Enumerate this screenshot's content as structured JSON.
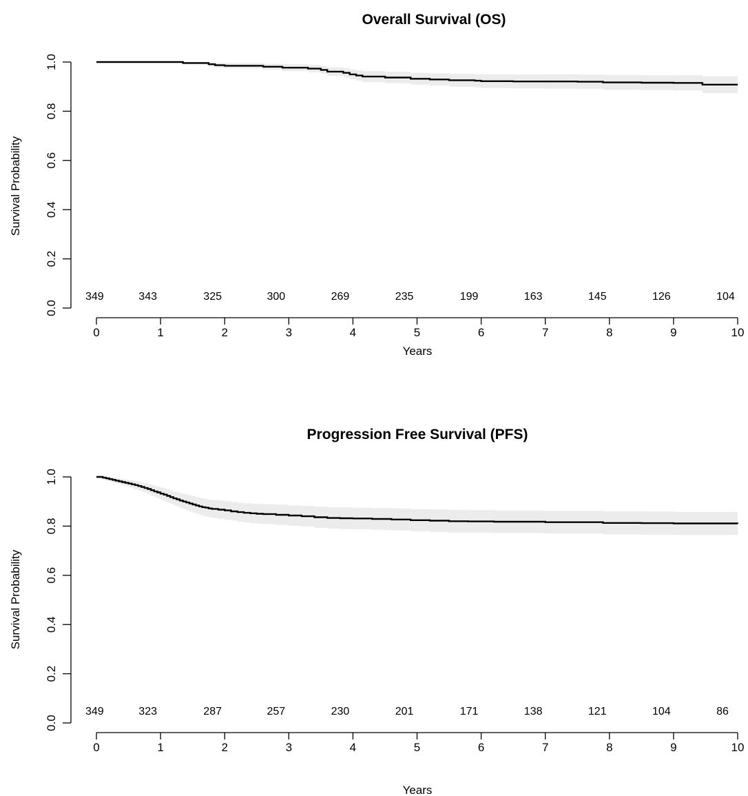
{
  "chart_data": [
    {
      "type": "line",
      "title": "Overall Survival (OS)",
      "xlabel": "Years",
      "ylabel": "Survival Probability",
      "xlim": [
        0,
        10
      ],
      "ylim": [
        0,
        1
      ],
      "xticks": [
        "0",
        "1",
        "2",
        "3",
        "4",
        "5",
        "6",
        "7",
        "8",
        "9",
        "10"
      ],
      "yticks": [
        "0.0",
        "0.2",
        "0.4",
        "0.6",
        "0.8",
        "1.0"
      ],
      "grid": false,
      "at_risk": {
        "x": [
          0,
          0.83,
          1.84,
          2.83,
          3.83,
          4.83,
          5.84,
          6.84,
          7.84,
          8.84,
          9.84
        ],
        "labels": [
          "349",
          "343",
          "325",
          "300",
          "269",
          "235",
          "199",
          "163",
          "145",
          "126",
          "104"
        ]
      },
      "series": [
        {
          "x": [
            0,
            1.35,
            1.75,
            1.85,
            2.0,
            2.6,
            2.9,
            3.3,
            3.5,
            3.6,
            3.85,
            3.95,
            4.05,
            4.15,
            4.5,
            4.9,
            5.2,
            5.5,
            5.9,
            6.0,
            6.5,
            7.0,
            7.5,
            7.9,
            8.5,
            9.0,
            9.45,
            10.0
          ],
          "y": [
            1.0,
            0.996,
            0.991,
            0.987,
            0.985,
            0.981,
            0.977,
            0.973,
            0.968,
            0.961,
            0.956,
            0.95,
            0.945,
            0.941,
            0.937,
            0.932,
            0.929,
            0.926,
            0.924,
            0.922,
            0.921,
            0.921,
            0.92,
            0.917,
            0.916,
            0.915,
            0.908,
            0.908
          ],
          "lower": [
            1.0,
            0.99,
            0.983,
            0.977,
            0.974,
            0.969,
            0.963,
            0.958,
            0.952,
            0.944,
            0.937,
            0.93,
            0.924,
            0.919,
            0.914,
            0.908,
            0.904,
            0.9,
            0.897,
            0.894,
            0.893,
            0.892,
            0.891,
            0.887,
            0.886,
            0.884,
            0.874,
            0.874
          ],
          "upper": [
            1.0,
            1.0,
            0.999,
            0.997,
            0.996,
            0.993,
            0.991,
            0.988,
            0.984,
            0.978,
            0.975,
            0.97,
            0.966,
            0.963,
            0.96,
            0.956,
            0.954,
            0.952,
            0.951,
            0.95,
            0.949,
            0.95,
            0.949,
            0.947,
            0.946,
            0.946,
            0.942,
            0.942
          ]
        }
      ]
    },
    {
      "type": "line",
      "title": "Progression Free Survival (PFS)",
      "xlabel": "Years",
      "ylabel": "Survival Probability",
      "xlim": [
        0,
        10
      ],
      "ylim": [
        0,
        1
      ],
      "xticks": [
        "0",
        "1",
        "2",
        "3",
        "4",
        "5",
        "6",
        "7",
        "8",
        "9",
        "10"
      ],
      "yticks": [
        "0.0",
        "0.2",
        "0.4",
        "0.6",
        "0.8",
        "1.0"
      ],
      "grid": false,
      "at_risk": {
        "x": [
          0,
          0.83,
          1.84,
          2.83,
          3.83,
          4.83,
          5.84,
          6.84,
          7.84,
          8.84,
          9.84
        ],
        "labels": [
          "349",
          "323",
          "287",
          "257",
          "230",
          "201",
          "171",
          "138",
          "121",
          "104",
          "86"
        ]
      },
      "series": [
        {
          "x": [
            0,
            0.05,
            0.1,
            0.15,
            0.2,
            0.25,
            0.3,
            0.35,
            0.4,
            0.45,
            0.5,
            0.55,
            0.6,
            0.65,
            0.7,
            0.75,
            0.8,
            0.85,
            0.9,
            0.95,
            1.0,
            1.05,
            1.1,
            1.15,
            1.2,
            1.25,
            1.3,
            1.35,
            1.4,
            1.45,
            1.5,
            1.55,
            1.6,
            1.65,
            1.7,
            1.75,
            1.8,
            1.9,
            2.0,
            2.1,
            2.2,
            2.3,
            2.4,
            2.5,
            2.6,
            2.8,
            3.0,
            3.2,
            3.4,
            3.6,
            3.8,
            4.0,
            4.3,
            4.6,
            4.9,
            5.2,
            5.5,
            5.8,
            6.2,
            7.0,
            7.9,
            8.5,
            9.0,
            10.0
          ],
          "y": [
            1.0,
            1.0,
            0.997,
            0.994,
            0.991,
            0.988,
            0.985,
            0.982,
            0.979,
            0.976,
            0.973,
            0.97,
            0.967,
            0.963,
            0.959,
            0.955,
            0.951,
            0.946,
            0.941,
            0.937,
            0.932,
            0.928,
            0.923,
            0.918,
            0.913,
            0.909,
            0.904,
            0.9,
            0.896,
            0.892,
            0.888,
            0.884,
            0.88,
            0.877,
            0.875,
            0.872,
            0.87,
            0.867,
            0.864,
            0.86,
            0.857,
            0.854,
            0.852,
            0.85,
            0.849,
            0.846,
            0.843,
            0.84,
            0.836,
            0.833,
            0.832,
            0.831,
            0.829,
            0.827,
            0.824,
            0.822,
            0.82,
            0.819,
            0.818,
            0.816,
            0.813,
            0.812,
            0.811,
            0.81
          ],
          "lower": [
            1.0,
            1.0,
            0.99,
            0.986,
            0.982,
            0.978,
            0.974,
            0.97,
            0.966,
            0.962,
            0.958,
            0.954,
            0.95,
            0.945,
            0.94,
            0.935,
            0.93,
            0.924,
            0.918,
            0.913,
            0.907,
            0.902,
            0.896,
            0.891,
            0.885,
            0.88,
            0.874,
            0.869,
            0.864,
            0.86,
            0.855,
            0.851,
            0.846,
            0.842,
            0.839,
            0.836,
            0.833,
            0.829,
            0.826,
            0.822,
            0.818,
            0.815,
            0.812,
            0.81,
            0.808,
            0.805,
            0.801,
            0.798,
            0.793,
            0.79,
            0.788,
            0.787,
            0.785,
            0.782,
            0.779,
            0.776,
            0.774,
            0.773,
            0.772,
            0.77,
            0.766,
            0.765,
            0.764,
            0.762
          ],
          "upper": [
            1.0,
            1.0,
            1.0,
            1.0,
            0.999,
            0.997,
            0.995,
            0.993,
            0.991,
            0.989,
            0.987,
            0.985,
            0.983,
            0.98,
            0.977,
            0.974,
            0.971,
            0.967,
            0.963,
            0.96,
            0.956,
            0.953,
            0.949,
            0.945,
            0.941,
            0.938,
            0.934,
            0.931,
            0.928,
            0.925,
            0.922,
            0.918,
            0.915,
            0.912,
            0.91,
            0.908,
            0.906,
            0.904,
            0.901,
            0.898,
            0.895,
            0.893,
            0.891,
            0.89,
            0.889,
            0.887,
            0.884,
            0.882,
            0.879,
            0.876,
            0.876,
            0.875,
            0.873,
            0.872,
            0.869,
            0.868,
            0.866,
            0.865,
            0.864,
            0.862,
            0.86,
            0.859,
            0.858,
            0.858
          ]
        }
      ]
    }
  ]
}
